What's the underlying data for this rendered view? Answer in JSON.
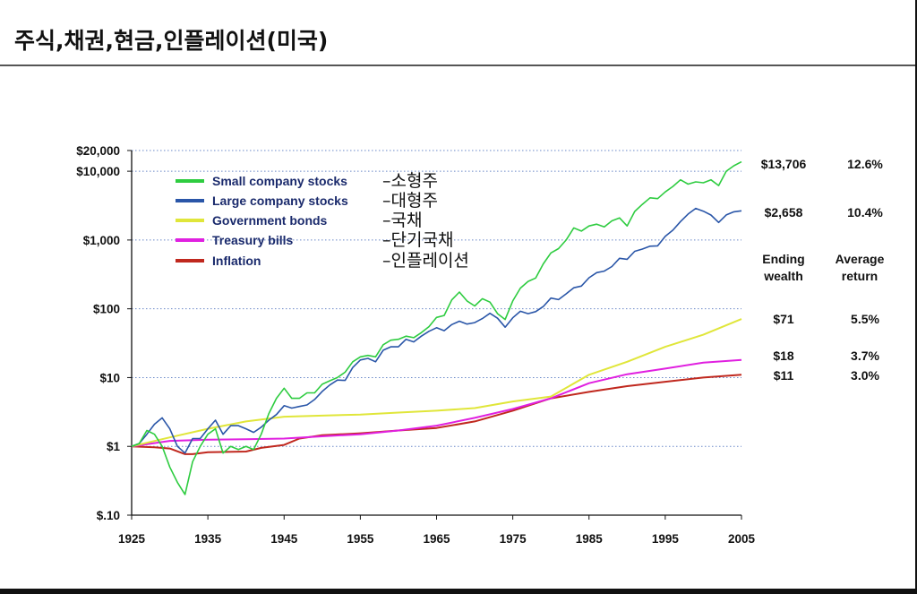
{
  "page": {
    "title": "주식,채권,현금,인플레이션(미국)"
  },
  "colors": {
    "small": "#2ecc40",
    "large": "#2a56a8",
    "bonds": "#e0e63a",
    "bills": "#e020e0",
    "inflation": "#c0281e",
    "grid": "#6a88c8"
  },
  "chart_data": {
    "type": "line",
    "scale": "log",
    "xlim": [
      1925,
      2005
    ],
    "ylim": [
      0.1,
      20000
    ],
    "x_ticks": [
      1925,
      1935,
      1945,
      1955,
      1965,
      1975,
      1985,
      1995,
      2005
    ],
    "y_ticks": [
      {
        "value": 20000,
        "label": "$20,000"
      },
      {
        "value": 10000,
        "label": "$10,000"
      },
      {
        "value": 1000,
        "label": "$1,000"
      },
      {
        "value": 100,
        "label": "$100"
      },
      {
        "value": 10,
        "label": "$10"
      },
      {
        "value": 1,
        "label": "$1"
      },
      {
        "value": 0.1,
        "label": "$.10"
      }
    ],
    "series": [
      {
        "key": "small",
        "name": "Small company stocks",
        "korean": "–소형주",
        "ending_wealth": "$13,706",
        "average_return": "12.6%",
        "points": [
          [
            1925,
            1
          ],
          [
            1926,
            1.1
          ],
          [
            1927,
            1.7
          ],
          [
            1928,
            1.5
          ],
          [
            1929,
            1.0
          ],
          [
            1930,
            0.5
          ],
          [
            1931,
            0.3
          ],
          [
            1932,
            0.2
          ],
          [
            1933,
            0.6
          ],
          [
            1934,
            1.0
          ],
          [
            1935,
            1.5
          ],
          [
            1936,
            1.8
          ],
          [
            1937,
            0.8
          ],
          [
            1938,
            1.0
          ],
          [
            1939,
            0.9
          ],
          [
            1940,
            1.0
          ],
          [
            1941,
            0.9
          ],
          [
            1942,
            1.5
          ],
          [
            1943,
            3
          ],
          [
            1944,
            5
          ],
          [
            1945,
            7
          ],
          [
            1946,
            5
          ],
          [
            1947,
            5
          ],
          [
            1948,
            6
          ],
          [
            1949,
            6
          ],
          [
            1950,
            8
          ],
          [
            1951,
            9
          ],
          [
            1952,
            10
          ],
          [
            1953,
            12
          ],
          [
            1954,
            17
          ],
          [
            1955,
            20
          ],
          [
            1956,
            21
          ],
          [
            1957,
            20
          ],
          [
            1958,
            30
          ],
          [
            1959,
            35
          ],
          [
            1960,
            36
          ],
          [
            1961,
            40
          ],
          [
            1962,
            38
          ],
          [
            1963,
            45
          ],
          [
            1964,
            55
          ],
          [
            1965,
            75
          ],
          [
            1966,
            80
          ],
          [
            1967,
            135
          ],
          [
            1968,
            175
          ],
          [
            1969,
            130
          ],
          [
            1970,
            110
          ],
          [
            1971,
            140
          ],
          [
            1972,
            125
          ],
          [
            1973,
            85
          ],
          [
            1974,
            70
          ],
          [
            1975,
            130
          ],
          [
            1976,
            200
          ],
          [
            1977,
            250
          ],
          [
            1978,
            280
          ],
          [
            1979,
            450
          ],
          [
            1980,
            650
          ],
          [
            1981,
            750
          ],
          [
            1982,
            1000
          ],
          [
            1983,
            1500
          ],
          [
            1984,
            1350
          ],
          [
            1985,
            1600
          ],
          [
            1986,
            1700
          ],
          [
            1987,
            1550
          ],
          [
            1988,
            1900
          ],
          [
            1989,
            2100
          ],
          [
            1990,
            1600
          ],
          [
            1991,
            2600
          ],
          [
            1992,
            3300
          ],
          [
            1993,
            4100
          ],
          [
            1994,
            4000
          ],
          [
            1995,
            5000
          ],
          [
            1996,
            6000
          ],
          [
            1997,
            7500
          ],
          [
            1998,
            6500
          ],
          [
            1999,
            7000
          ],
          [
            2000,
            6800
          ],
          [
            2001,
            7500
          ],
          [
            2002,
            6200
          ],
          [
            2003,
            10000
          ],
          [
            2004,
            12000
          ],
          [
            2005,
            13706
          ]
        ]
      },
      {
        "key": "large",
        "name": "Large company stocks",
        "korean": "–대형주",
        "ending_wealth": "$2,658",
        "average_return": "10.4%",
        "points": [
          [
            1925,
            1
          ],
          [
            1926,
            1.1
          ],
          [
            1927,
            1.5
          ],
          [
            1928,
            2.1
          ],
          [
            1929,
            2.6
          ],
          [
            1930,
            1.8
          ],
          [
            1931,
            1.0
          ],
          [
            1932,
            0.8
          ],
          [
            1933,
            1.3
          ],
          [
            1934,
            1.3
          ],
          [
            1935,
            1.8
          ],
          [
            1936,
            2.4
          ],
          [
            1937,
            1.5
          ],
          [
            1938,
            2.0
          ],
          [
            1939,
            2.0
          ],
          [
            1940,
            1.8
          ],
          [
            1941,
            1.6
          ],
          [
            1942,
            1.9
          ],
          [
            1943,
            2.4
          ],
          [
            1944,
            2.9
          ],
          [
            1945,
            3.9
          ],
          [
            1946,
            3.6
          ],
          [
            1947,
            3.8
          ],
          [
            1948,
            4.0
          ],
          [
            1949,
            4.8
          ],
          [
            1950,
            6.3
          ],
          [
            1951,
            7.8
          ],
          [
            1952,
            9.2
          ],
          [
            1953,
            9.1
          ],
          [
            1954,
            14
          ],
          [
            1955,
            18
          ],
          [
            1956,
            19
          ],
          [
            1957,
            17
          ],
          [
            1958,
            25
          ],
          [
            1959,
            28
          ],
          [
            1960,
            28
          ],
          [
            1961,
            36
          ],
          [
            1962,
            33
          ],
          [
            1963,
            40
          ],
          [
            1964,
            47
          ],
          [
            1965,
            53
          ],
          [
            1966,
            48
          ],
          [
            1967,
            59
          ],
          [
            1968,
            66
          ],
          [
            1969,
            60
          ],
          [
            1970,
            63
          ],
          [
            1971,
            72
          ],
          [
            1972,
            86
          ],
          [
            1973,
            73
          ],
          [
            1974,
            54
          ],
          [
            1975,
            74
          ],
          [
            1976,
            92
          ],
          [
            1977,
            85
          ],
          [
            1978,
            91
          ],
          [
            1979,
            108
          ],
          [
            1980,
            143
          ],
          [
            1981,
            136
          ],
          [
            1982,
            165
          ],
          [
            1983,
            202
          ],
          [
            1984,
            214
          ],
          [
            1985,
            283
          ],
          [
            1986,
            336
          ],
          [
            1987,
            353
          ],
          [
            1988,
            412
          ],
          [
            1989,
            542
          ],
          [
            1990,
            525
          ],
          [
            1991,
            685
          ],
          [
            1992,
            738
          ],
          [
            1993,
            812
          ],
          [
            1994,
            822
          ],
          [
            1995,
            1131
          ],
          [
            1996,
            1390
          ],
          [
            1997,
            1854
          ],
          [
            1998,
            2384
          ],
          [
            1999,
            2885
          ],
          [
            2000,
            2623
          ],
          [
            2001,
            2311
          ],
          [
            2002,
            1801
          ],
          [
            2003,
            2317
          ],
          [
            2004,
            2569
          ],
          [
            2005,
            2658
          ]
        ]
      },
      {
        "key": "bonds",
        "name": "Government bonds",
        "korean": "–국채",
        "ending_wealth": "$71",
        "average_return": "5.5%",
        "points": [
          [
            1925,
            1
          ],
          [
            1930,
            1.35
          ],
          [
            1935,
            1.8
          ],
          [
            1940,
            2.3
          ],
          [
            1945,
            2.7
          ],
          [
            1950,
            2.8
          ],
          [
            1955,
            2.9
          ],
          [
            1960,
            3.1
          ],
          [
            1965,
            3.3
          ],
          [
            1970,
            3.6
          ],
          [
            1975,
            4.5
          ],
          [
            1980,
            5.3
          ],
          [
            1985,
            11
          ],
          [
            1990,
            17
          ],
          [
            1995,
            28
          ],
          [
            2000,
            42
          ],
          [
            2005,
            71
          ]
        ]
      },
      {
        "key": "bills",
        "name": "Treasury bills",
        "korean": "–단기국채",
        "ending_wealth": "$18",
        "average_return": "3.7%",
        "points": [
          [
            1925,
            1
          ],
          [
            1930,
            1.2
          ],
          [
            1935,
            1.25
          ],
          [
            1940,
            1.27
          ],
          [
            1945,
            1.3
          ],
          [
            1950,
            1.4
          ],
          [
            1955,
            1.5
          ],
          [
            1960,
            1.7
          ],
          [
            1965,
            2.0
          ],
          [
            1970,
            2.6
          ],
          [
            1975,
            3.5
          ],
          [
            1980,
            5.0
          ],
          [
            1985,
            8.3
          ],
          [
            1990,
            11.2
          ],
          [
            1995,
            13.5
          ],
          [
            2000,
            16.5
          ],
          [
            2005,
            18
          ]
        ]
      },
      {
        "key": "inflation",
        "name": "Inflation",
        "korean": "–인플레이션",
        "ending_wealth": "$11",
        "average_return": "3.0%",
        "points": [
          [
            1925,
            1
          ],
          [
            1928,
            0.97
          ],
          [
            1930,
            0.93
          ],
          [
            1932,
            0.77
          ],
          [
            1933,
            0.77
          ],
          [
            1935,
            0.82
          ],
          [
            1940,
            0.84
          ],
          [
            1942,
            0.95
          ],
          [
            1945,
            1.05
          ],
          [
            1947,
            1.3
          ],
          [
            1950,
            1.45
          ],
          [
            1955,
            1.55
          ],
          [
            1960,
            1.7
          ],
          [
            1965,
            1.85
          ],
          [
            1970,
            2.3
          ],
          [
            1975,
            3.3
          ],
          [
            1980,
            5.0
          ],
          [
            1985,
            6.2
          ],
          [
            1990,
            7.5
          ],
          [
            1995,
            8.7
          ],
          [
            2000,
            10
          ],
          [
            2005,
            11
          ]
        ]
      }
    ],
    "header": {
      "ending": "Ending wealth",
      "average": "Average return"
    },
    "header_lines": {
      "ending": [
        "Ending",
        "wealth"
      ],
      "average": [
        "Average",
        "return"
      ]
    }
  }
}
